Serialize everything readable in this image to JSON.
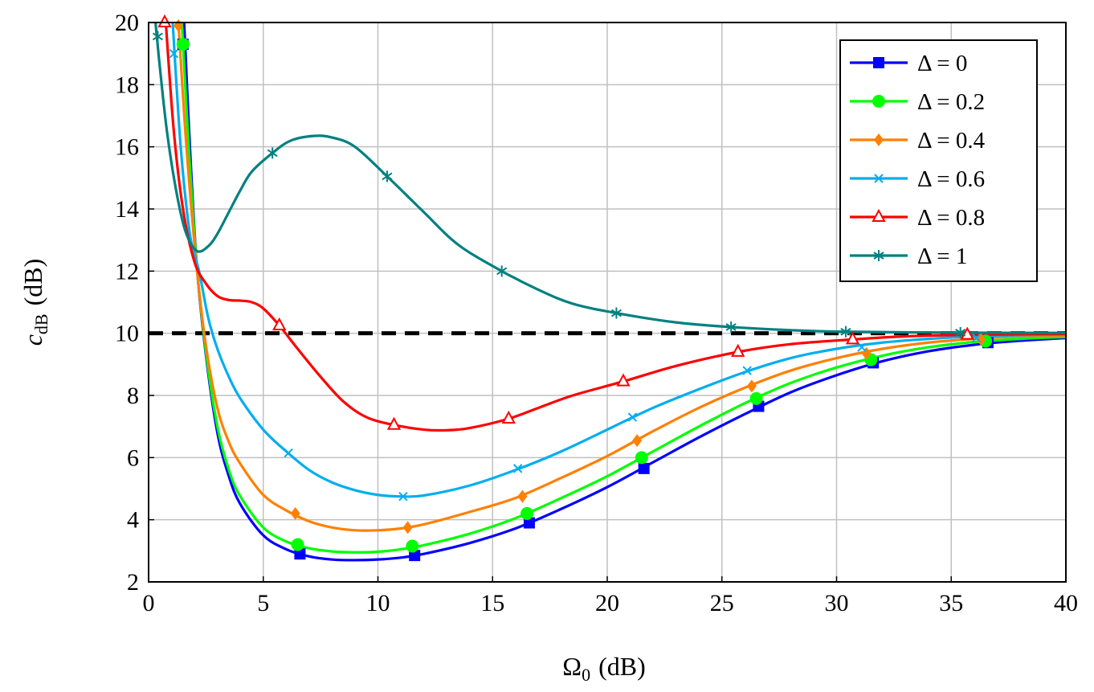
{
  "chart_data": {
    "type": "line",
    "title": "",
    "xlabel": {
      "main": "Ω",
      "sub": "0",
      "unit": "(dB)"
    },
    "ylabel": {
      "main": "c",
      "sub": "dB",
      "unit": "(dB)"
    },
    "xlim": [
      0,
      40
    ],
    "ylim": [
      2,
      20
    ],
    "xticks": [
      0,
      5,
      10,
      15,
      20,
      25,
      30,
      35,
      40
    ],
    "yticks": [
      2,
      4,
      6,
      8,
      10,
      12,
      14,
      16,
      18,
      20
    ],
    "grid": true,
    "legend_position": "top-right",
    "reference_line": {
      "y": 10,
      "color": "#000000",
      "style": "dashed"
    },
    "series": [
      {
        "name": "Δ = 0",
        "color": "#0000ff",
        "marker": "square",
        "points": [
          [
            1.55,
            20
          ],
          [
            1.8,
            16
          ],
          [
            2.1,
            12.2
          ],
          [
            2.5,
            9.3
          ],
          [
            3,
            6.8
          ],
          [
            3.5,
            5.4
          ],
          [
            4,
            4.5
          ],
          [
            5,
            3.5
          ],
          [
            6,
            3.05
          ],
          [
            7,
            2.82
          ],
          [
            8,
            2.72
          ],
          [
            9,
            2.7
          ],
          [
            10,
            2.72
          ],
          [
            11,
            2.78
          ],
          [
            12,
            2.9
          ],
          [
            14,
            3.25
          ],
          [
            16,
            3.72
          ],
          [
            18,
            4.35
          ],
          [
            20,
            5.05
          ],
          [
            22,
            5.85
          ],
          [
            24,
            6.65
          ],
          [
            26,
            7.4
          ],
          [
            28,
            8.1
          ],
          [
            30,
            8.65
          ],
          [
            32,
            9.1
          ],
          [
            34,
            9.42
          ],
          [
            36,
            9.63
          ],
          [
            38,
            9.76
          ],
          [
            40,
            9.85
          ]
        ],
        "markers": [
          [
            1.5,
            19.3
          ],
          [
            6.6,
            2.9
          ],
          [
            11.6,
            2.85
          ],
          [
            16.6,
            3.9
          ],
          [
            21.6,
            5.65
          ],
          [
            26.6,
            7.65
          ],
          [
            31.6,
            9.05
          ],
          [
            36.6,
            9.7
          ]
        ]
      },
      {
        "name": "Δ = 0.2",
        "color": "#00ff00",
        "marker": "circle",
        "points": [
          [
            1.45,
            20
          ],
          [
            1.75,
            16
          ],
          [
            2.1,
            12.2
          ],
          [
            2.5,
            9.4
          ],
          [
            3,
            7
          ],
          [
            3.5,
            5.6
          ],
          [
            4,
            4.75
          ],
          [
            5,
            3.75
          ],
          [
            6,
            3.3
          ],
          [
            7,
            3.08
          ],
          [
            8,
            2.98
          ],
          [
            9,
            2.95
          ],
          [
            10,
            2.97
          ],
          [
            11,
            3.05
          ],
          [
            12,
            3.18
          ],
          [
            14,
            3.55
          ],
          [
            16,
            4.05
          ],
          [
            18,
            4.7
          ],
          [
            20,
            5.4
          ],
          [
            22,
            6.2
          ],
          [
            24,
            7.0
          ],
          [
            26,
            7.75
          ],
          [
            28,
            8.4
          ],
          [
            30,
            8.9
          ],
          [
            32,
            9.28
          ],
          [
            34,
            9.55
          ],
          [
            36,
            9.72
          ],
          [
            38,
            9.82
          ],
          [
            40,
            9.88
          ]
        ],
        "markers": [
          [
            1.5,
            19.3
          ],
          [
            6.5,
            3.2
          ],
          [
            11.5,
            3.15
          ],
          [
            16.5,
            4.2
          ],
          [
            21.5,
            6.0
          ],
          [
            26.5,
            7.9
          ],
          [
            31.5,
            9.15
          ],
          [
            36.5,
            9.75
          ]
        ]
      },
      {
        "name": "Δ = 0.4",
        "color": "#ff8000",
        "marker": "diamond",
        "points": [
          [
            1.3,
            20
          ],
          [
            1.65,
            16
          ],
          [
            2.1,
            12.1
          ],
          [
            2.5,
            9.6
          ],
          [
            3,
            7.6
          ],
          [
            3.5,
            6.5
          ],
          [
            4,
            5.8
          ],
          [
            5,
            4.8
          ],
          [
            6,
            4.3
          ],
          [
            7,
            3.95
          ],
          [
            8,
            3.75
          ],
          [
            9,
            3.66
          ],
          [
            10,
            3.66
          ],
          [
            11,
            3.72
          ],
          [
            12,
            3.85
          ],
          [
            14,
            4.25
          ],
          [
            16,
            4.7
          ],
          [
            18,
            5.35
          ],
          [
            20,
            6.05
          ],
          [
            22,
            6.85
          ],
          [
            24,
            7.6
          ],
          [
            26,
            8.25
          ],
          [
            28,
            8.8
          ],
          [
            30,
            9.2
          ],
          [
            32,
            9.5
          ],
          [
            34,
            9.7
          ],
          [
            36,
            9.82
          ],
          [
            38,
            9.9
          ],
          [
            40,
            9.93
          ]
        ],
        "markers": [
          [
            1.3,
            19.9
          ],
          [
            6.4,
            4.2
          ],
          [
            11.3,
            3.75
          ],
          [
            16.3,
            4.75
          ],
          [
            21.3,
            6.55
          ],
          [
            26.3,
            8.3
          ],
          [
            31.3,
            9.35
          ],
          [
            36.3,
            9.8
          ]
        ]
      },
      {
        "name": "Δ = 0.6",
        "color": "#00aeef",
        "marker": "x",
        "points": [
          [
            1.05,
            20
          ],
          [
            1.4,
            16
          ],
          [
            1.8,
            13.2
          ],
          [
            2.2,
            12
          ],
          [
            2.6,
            10.5
          ],
          [
            3,
            9.5
          ],
          [
            3.5,
            8.6
          ],
          [
            4,
            7.9
          ],
          [
            5,
            6.9
          ],
          [
            6,
            6.2
          ],
          [
            7,
            5.6
          ],
          [
            8,
            5.2
          ],
          [
            9,
            4.95
          ],
          [
            10,
            4.8
          ],
          [
            11,
            4.75
          ],
          [
            12,
            4.78
          ],
          [
            14,
            5.1
          ],
          [
            16,
            5.6
          ],
          [
            18,
            6.2
          ],
          [
            20,
            6.9
          ],
          [
            22,
            7.6
          ],
          [
            24,
            8.2
          ],
          [
            26,
            8.75
          ],
          [
            28,
            9.2
          ],
          [
            30,
            9.5
          ],
          [
            32,
            9.7
          ],
          [
            34,
            9.82
          ],
          [
            36,
            9.9
          ],
          [
            38,
            9.94
          ],
          [
            40,
            9.96
          ]
        ],
        "markers": [
          [
            1.1,
            19.0
          ],
          [
            6.1,
            6.15
          ],
          [
            11.1,
            4.75
          ],
          [
            16.1,
            5.65
          ],
          [
            21.1,
            7.3
          ],
          [
            26.1,
            8.8
          ],
          [
            31.1,
            9.55
          ],
          [
            36.1,
            9.85
          ]
        ]
      },
      {
        "name": "Δ = 0.8",
        "color": "#ff0000",
        "marker": "triangle",
        "points": [
          [
            0.75,
            20
          ],
          [
            1.1,
            16.5
          ],
          [
            1.5,
            14
          ],
          [
            2,
            12.3
          ],
          [
            2.5,
            11.6
          ],
          [
            3,
            11.2
          ],
          [
            3.5,
            11.07
          ],
          [
            4,
            11.05
          ],
          [
            4.5,
            11.0
          ],
          [
            5,
            10.8
          ],
          [
            5.7,
            10.25
          ],
          [
            6.5,
            9.5
          ],
          [
            7.5,
            8.6
          ],
          [
            8.5,
            7.8
          ],
          [
            9.5,
            7.3
          ],
          [
            10.7,
            7.05
          ],
          [
            12,
            6.9
          ],
          [
            13,
            6.88
          ],
          [
            14,
            6.95
          ],
          [
            15.7,
            7.25
          ],
          [
            17,
            7.6
          ],
          [
            18.5,
            8.0
          ],
          [
            20.7,
            8.45
          ],
          [
            23,
            8.95
          ],
          [
            25.7,
            9.4
          ],
          [
            28,
            9.65
          ],
          [
            30.7,
            9.8
          ],
          [
            33,
            9.9
          ],
          [
            35.7,
            9.95
          ],
          [
            40,
            9.98
          ]
        ],
        "markers": [
          [
            0.7,
            20
          ],
          [
            5.7,
            10.25
          ],
          [
            10.7,
            7.05
          ],
          [
            15.7,
            7.25
          ],
          [
            20.7,
            8.45
          ],
          [
            25.7,
            9.4
          ],
          [
            30.7,
            9.8
          ],
          [
            35.7,
            9.95
          ]
        ]
      },
      {
        "name": "Δ = 1",
        "color": "#008080",
        "marker": "star",
        "points": [
          [
            0.3,
            20
          ],
          [
            0.5,
            18.5
          ],
          [
            0.8,
            16.5
          ],
          [
            1.2,
            14.6
          ],
          [
            1.6,
            13.3
          ],
          [
            2.1,
            12.65
          ],
          [
            2.6,
            12.8
          ],
          [
            3,
            13.2
          ],
          [
            3.5,
            13.9
          ],
          [
            4,
            14.6
          ],
          [
            4.5,
            15.2
          ],
          [
            5.4,
            15.8
          ],
          [
            6.2,
            16.2
          ],
          [
            7.2,
            16.35
          ],
          [
            8,
            16.3
          ],
          [
            9,
            16.0
          ],
          [
            10.4,
            15.05
          ],
          [
            12,
            13.9
          ],
          [
            13.5,
            12.85
          ],
          [
            15.4,
            12.0
          ],
          [
            17,
            11.4
          ],
          [
            18.5,
            10.95
          ],
          [
            20.4,
            10.65
          ],
          [
            23,
            10.35
          ],
          [
            25.4,
            10.2
          ],
          [
            28,
            10.1
          ],
          [
            30.4,
            10.05
          ],
          [
            35.4,
            10.02
          ],
          [
            40,
            10.01
          ]
        ],
        "markers": [
          [
            0.4,
            19.55
          ],
          [
            5.4,
            15.8
          ],
          [
            10.4,
            15.05
          ],
          [
            15.4,
            12.0
          ],
          [
            20.4,
            10.65
          ],
          [
            25.4,
            10.2
          ],
          [
            30.4,
            10.05
          ],
          [
            35.4,
            10.02
          ]
        ]
      }
    ]
  }
}
